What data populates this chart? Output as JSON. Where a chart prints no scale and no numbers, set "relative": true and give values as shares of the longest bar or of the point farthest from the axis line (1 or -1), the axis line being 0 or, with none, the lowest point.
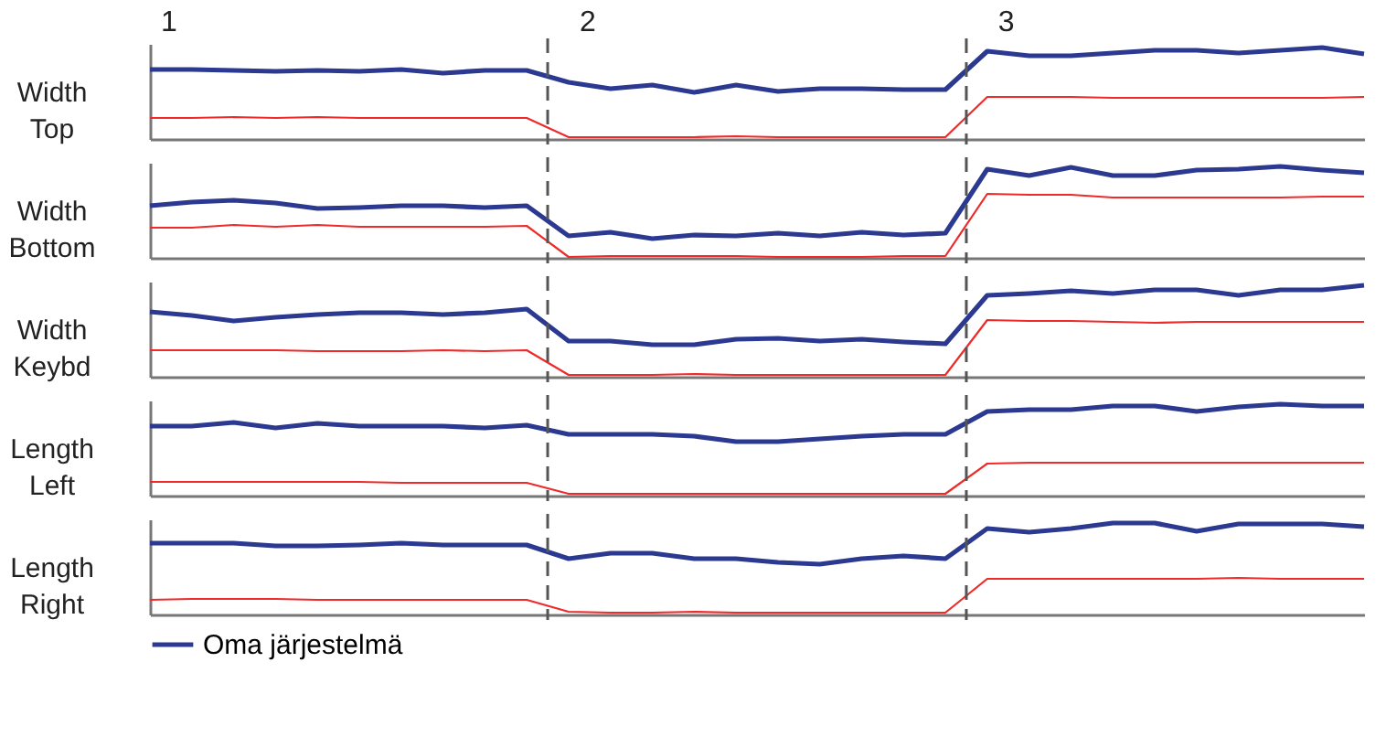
{
  "chart_data": [
    {
      "type": "line",
      "ylabel": "Width Top",
      "relative": true,
      "categories": [
        null,
        null,
        null,
        null,
        null,
        null,
        null,
        null,
        null,
        null,
        null,
        null,
        null,
        null,
        null,
        null,
        null,
        null,
        null,
        null,
        null,
        null,
        null,
        null,
        null,
        null,
        null,
        null,
        null,
        null
      ],
      "annotations": [
        "1",
        "2",
        "3"
      ],
      "series": [
        {
          "color": "#ee2a2a",
          "values": [
            0.23,
            0.23,
            0.24,
            0.23,
            0.24,
            0.23,
            0.23,
            0.23,
            0.23,
            0.23,
            0.02,
            0.02,
            0.02,
            0.02,
            0.03,
            0.02,
            0.02,
            0.02,
            0.02,
            0.02,
            0.46,
            0.46,
            0.46,
            0.45,
            0.45,
            0.45,
            0.45,
            0.45,
            0.45,
            0.46
          ]
        },
        {
          "color": "#2b3990",
          "values": [
            0.76,
            0.76,
            0.75,
            0.74,
            0.75,
            0.74,
            0.76,
            0.72,
            0.75,
            0.75,
            0.62,
            0.55,
            0.59,
            0.51,
            0.59,
            0.52,
            0.55,
            0.55,
            0.54,
            0.54,
            0.96,
            0.91,
            0.91,
            0.94,
            0.97,
            0.97,
            0.94,
            0.97,
            1.0,
            0.93
          ]
        }
      ],
      "marker": "none",
      "line_style": "solid"
    },
    {
      "type": "line",
      "ylabel": "Width Bottom",
      "relative": true,
      "categories": [
        null,
        null,
        null,
        null,
        null,
        null,
        null,
        null,
        null,
        null,
        null,
        null,
        null,
        null,
        null,
        null,
        null,
        null,
        null,
        null,
        null,
        null,
        null,
        null,
        null,
        null,
        null,
        null,
        null,
        null
      ],
      "series": [
        {
          "color": "#ee2a2a",
          "values": [
            0.33,
            0.33,
            0.36,
            0.34,
            0.36,
            0.34,
            0.34,
            0.34,
            0.34,
            0.35,
            0.01,
            0.02,
            0.02,
            0.02,
            0.02,
            0.01,
            0.01,
            0.01,
            0.02,
            0.02,
            0.7,
            0.69,
            0.69,
            0.66,
            0.66,
            0.66,
            0.66,
            0.66,
            0.67,
            0.67
          ]
        },
        {
          "color": "#2b3990",
          "values": [
            0.57,
            0.61,
            0.63,
            0.6,
            0.54,
            0.55,
            0.57,
            0.57,
            0.55,
            0.57,
            0.24,
            0.28,
            0.21,
            0.25,
            0.24,
            0.27,
            0.24,
            0.28,
            0.25,
            0.27,
            0.97,
            0.9,
            0.99,
            0.9,
            0.9,
            0.96,
            0.97,
            1.0,
            0.96,
            0.93
          ]
        }
      ],
      "marker": "none",
      "line_style": "solid"
    },
    {
      "type": "line",
      "ylabel": "Width Keybd",
      "relative": true,
      "categories": [
        null,
        null,
        null,
        null,
        null,
        null,
        null,
        null,
        null,
        null,
        null,
        null,
        null,
        null,
        null,
        null,
        null,
        null,
        null,
        null,
        null,
        null,
        null,
        null,
        null,
        null,
        null,
        null,
        null,
        null
      ],
      "series": [
        {
          "color": "#ee2a2a",
          "values": [
            0.29,
            0.29,
            0.29,
            0.29,
            0.28,
            0.28,
            0.28,
            0.29,
            0.28,
            0.29,
            0.02,
            0.02,
            0.02,
            0.03,
            0.02,
            0.02,
            0.02,
            0.02,
            0.02,
            0.02,
            0.62,
            0.61,
            0.61,
            0.6,
            0.59,
            0.6,
            0.6,
            0.6,
            0.6,
            0.6
          ]
        },
        {
          "color": "#2b3990",
          "values": [
            0.71,
            0.67,
            0.61,
            0.65,
            0.68,
            0.7,
            0.7,
            0.68,
            0.7,
            0.74,
            0.39,
            0.39,
            0.35,
            0.35,
            0.41,
            0.42,
            0.39,
            0.41,
            0.38,
            0.36,
            0.89,
            0.91,
            0.94,
            0.91,
            0.95,
            0.95,
            0.89,
            0.95,
            0.95,
            1.0
          ]
        }
      ],
      "marker": "none",
      "line_style": "solid"
    },
    {
      "type": "line",
      "ylabel": "Length Left",
      "relative": true,
      "categories": [
        null,
        null,
        null,
        null,
        null,
        null,
        null,
        null,
        null,
        null,
        null,
        null,
        null,
        null,
        null,
        null,
        null,
        null,
        null,
        null,
        null,
        null,
        null,
        null,
        null,
        null,
        null,
        null,
        null,
        null
      ],
      "series": [
        {
          "color": "#ee2a2a",
          "values": [
            0.15,
            0.15,
            0.15,
            0.15,
            0.15,
            0.15,
            0.14,
            0.14,
            0.14,
            0.14,
            0.02,
            0.02,
            0.02,
            0.02,
            0.02,
            0.02,
            0.02,
            0.02,
            0.02,
            0.02,
            0.35,
            0.36,
            0.36,
            0.36,
            0.36,
            0.36,
            0.36,
            0.36,
            0.36,
            0.36
          ]
        },
        {
          "color": "#2b3990",
          "values": [
            0.76,
            0.76,
            0.8,
            0.74,
            0.79,
            0.76,
            0.76,
            0.76,
            0.74,
            0.77,
            0.67,
            0.67,
            0.67,
            0.65,
            0.59,
            0.59,
            0.62,
            0.65,
            0.67,
            0.67,
            0.92,
            0.94,
            0.94,
            0.98,
            0.98,
            0.92,
            0.97,
            1.0,
            0.98,
            0.98
          ]
        }
      ],
      "marker": "none",
      "line_style": "solid"
    },
    {
      "type": "line",
      "ylabel": "Length Right",
      "relative": true,
      "categories": [
        null,
        null,
        null,
        null,
        null,
        null,
        null,
        null,
        null,
        null,
        null,
        null,
        null,
        null,
        null,
        null,
        null,
        null,
        null,
        null,
        null,
        null,
        null,
        null,
        null,
        null,
        null,
        null,
        null,
        null
      ],
      "legend": "bottom",
      "series": [
        {
          "color": "#ee2a2a",
          "values": [
            0.16,
            0.17,
            0.17,
            0.17,
            0.16,
            0.16,
            0.16,
            0.16,
            0.16,
            0.16,
            0.03,
            0.02,
            0.02,
            0.03,
            0.02,
            0.02,
            0.02,
            0.02,
            0.02,
            0.02,
            0.39,
            0.39,
            0.39,
            0.39,
            0.39,
            0.39,
            0.4,
            0.39,
            0.39,
            0.39
          ]
        },
        {
          "name": "Oma järjestelmä",
          "color": "#2b3990",
          "values": [
            0.78,
            0.78,
            0.78,
            0.75,
            0.75,
            0.76,
            0.78,
            0.76,
            0.76,
            0.76,
            0.61,
            0.67,
            0.67,
            0.61,
            0.61,
            0.57,
            0.55,
            0.61,
            0.64,
            0.61,
            0.94,
            0.9,
            0.94,
            1.0,
            1.0,
            0.91,
            0.99,
            0.99,
            0.99,
            0.96
          ]
        }
      ],
      "marker": "none",
      "line_style": "solid"
    }
  ]
}
